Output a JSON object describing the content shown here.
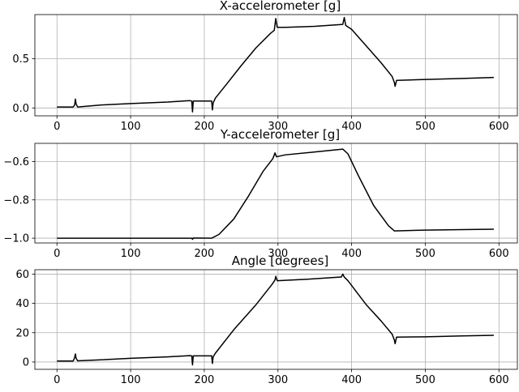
{
  "chart_data": [
    {
      "type": "line",
      "title": "X-accelerometer [g]",
      "xlabel": "",
      "ylabel": "",
      "xlim": [
        -30,
        625
      ],
      "ylim": [
        -0.08,
        0.95
      ],
      "xticks": [
        0,
        100,
        200,
        300,
        400,
        500,
        600
      ],
      "xtick_labels": [
        "0",
        "100",
        "200",
        "300",
        "400",
        "500",
        "600"
      ],
      "yticks": [
        0.0,
        0.5
      ],
      "ytick_labels": [
        "0.0",
        "0.5"
      ],
      "grid": true,
      "series": [
        {
          "color": "#000000",
          "points": [
            [
              0,
              0.01
            ],
            [
              22,
              0.01
            ],
            [
              24,
              0.03
            ],
            [
              25,
              0.09
            ],
            [
              26,
              0.04
            ],
            [
              28,
              0.01
            ],
            [
              60,
              0.03
            ],
            [
              100,
              0.045
            ],
            [
              150,
              0.06
            ],
            [
              180,
              0.075
            ],
            [
              183,
              0.07
            ],
            [
              184,
              -0.04
            ],
            [
              185,
              0.07
            ],
            [
              210,
              0.07
            ],
            [
              211,
              -0.02
            ],
            [
              212,
              0.05
            ],
            [
              215,
              0.1
            ],
            [
              230,
              0.24
            ],
            [
              250,
              0.43
            ],
            [
              270,
              0.61
            ],
            [
              290,
              0.76
            ],
            [
              295,
              0.79
            ],
            [
              297,
              0.91
            ],
            [
              299,
              0.82
            ],
            [
              310,
              0.82
            ],
            [
              350,
              0.83
            ],
            [
              388,
              0.85
            ],
            [
              390,
              0.92
            ],
            [
              392,
              0.84
            ],
            [
              400,
              0.8
            ],
            [
              420,
              0.63
            ],
            [
              440,
              0.46
            ],
            [
              455,
              0.32
            ],
            [
              458,
              0.26
            ],
            [
              459,
              0.22
            ],
            [
              461,
              0.28
            ],
            [
              500,
              0.29
            ],
            [
              550,
              0.3
            ],
            [
              593,
              0.31
            ]
          ]
        }
      ]
    },
    {
      "type": "line",
      "title": "Y-accelerometer [g]",
      "xlabel": "",
      "ylabel": "",
      "xlim": [
        -30,
        625
      ],
      "ylim": [
        -1.025,
        -0.505
      ],
      "xticks": [
        0,
        100,
        200,
        300,
        400,
        500,
        600
      ],
      "xtick_labels": [
        "0",
        "100",
        "200",
        "300",
        "400",
        "500",
        "600"
      ],
      "yticks": [
        -1.0,
        -0.8,
        -0.6
      ],
      "ytick_labels": [
        "−1.0",
        "−0.8",
        "−0.6"
      ],
      "grid": true,
      "series": [
        {
          "color": "#000000",
          "points": [
            [
              0,
              -1.0
            ],
            [
              100,
              -1.0
            ],
            [
              183,
              -1.0
            ],
            [
              184,
              -1.006
            ],
            [
              185,
              -0.999
            ],
            [
              210,
              -1.0
            ],
            [
              220,
              -0.98
            ],
            [
              240,
              -0.9
            ],
            [
              260,
              -0.78
            ],
            [
              280,
              -0.65
            ],
            [
              293,
              -0.585
            ],
            [
              296,
              -0.555
            ],
            [
              298,
              -0.575
            ],
            [
              310,
              -0.565
            ],
            [
              350,
              -0.55
            ],
            [
              388,
              -0.535
            ],
            [
              395,
              -0.56
            ],
            [
              410,
              -0.68
            ],
            [
              430,
              -0.83
            ],
            [
              450,
              -0.935
            ],
            [
              458,
              -0.962
            ],
            [
              500,
              -0.958
            ],
            [
              550,
              -0.955
            ],
            [
              593,
              -0.953
            ]
          ]
        }
      ]
    },
    {
      "type": "line",
      "title": "Angle [degrees]",
      "xlabel": "",
      "ylabel": "",
      "xlim": [
        -30,
        625
      ],
      "ylim": [
        -5,
        63
      ],
      "xticks": [
        0,
        100,
        200,
        300,
        400,
        500,
        600
      ],
      "xtick_labels": [
        "0",
        "100",
        "200",
        "300",
        "400",
        "500",
        "600"
      ],
      "yticks": [
        0,
        20,
        40,
        60
      ],
      "ytick_labels": [
        "0",
        "20",
        "40",
        "60"
      ],
      "grid": true,
      "series": [
        {
          "color": "#000000",
          "points": [
            [
              0,
              0.7
            ],
            [
              22,
              0.7
            ],
            [
              24,
              3
            ],
            [
              25,
              5.5
            ],
            [
              26,
              2.5
            ],
            [
              28,
              0.8
            ],
            [
              60,
              1.5
            ],
            [
              100,
              2.5
            ],
            [
              150,
              3.5
            ],
            [
              180,
              4.3
            ],
            [
              183,
              4.2
            ],
            [
              184,
              -2
            ],
            [
              185,
              4.2
            ],
            [
              210,
              4.2
            ],
            [
              211,
              -1
            ],
            [
              212,
              3.5
            ],
            [
              215,
              6
            ],
            [
              240,
              22
            ],
            [
              270,
              39
            ],
            [
              292,
              53
            ],
            [
              296,
              56
            ],
            [
              297,
              58.5
            ],
            [
              299,
              55.5
            ],
            [
              340,
              56.5
            ],
            [
              386,
              58
            ],
            [
              388,
              60
            ],
            [
              390,
              58
            ],
            [
              395,
              55.5
            ],
            [
              420,
              39
            ],
            [
              440,
              28
            ],
            [
              455,
              19
            ],
            [
              458,
              15
            ],
            [
              459,
              12.5
            ],
            [
              461,
              17
            ],
            [
              500,
              17.2
            ],
            [
              550,
              17.8
            ],
            [
              593,
              18.2
            ]
          ]
        }
      ]
    }
  ]
}
